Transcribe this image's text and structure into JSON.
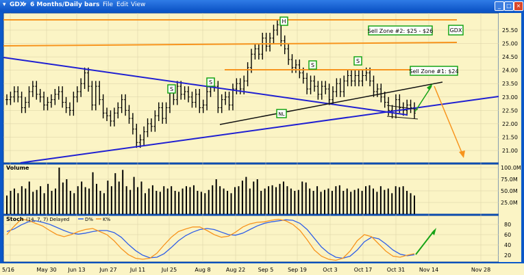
{
  "window": {
    "symbol": "GDX",
    "timeframe": "6 Months/Daily bars",
    "menu": [
      "File",
      "Edit",
      "View"
    ]
  },
  "colors": {
    "chart_bg": "#fbf4c5",
    "price_bars": "#000000",
    "blue_trendlines": "#1f1fd2",
    "orange_lines": "#f7941d",
    "black_lines": "#111111",
    "green_arrows": "#16a316",
    "stoch_d": "#2e5ee8",
    "stoch_k": "#f7941d"
  },
  "annotations": {
    "head": "H",
    "shoulder": "S",
    "neckline": "NL",
    "sell_zone_2": "Sell Zone #2: $25 - $26",
    "sell_zone_1": "Sell Zone #1: $24",
    "symbol_tag": "GDX"
  },
  "volume_label": "Volume",
  "stoch_label": {
    "name": "Stoch",
    "params": "(14, 7, 7) Delayed",
    "d": "D%",
    "k": "K%"
  },
  "chart_data": [
    {
      "type": "ohlc",
      "panel": "price",
      "ylim": [
        20.5,
        26.0
      ],
      "yticks": [
        "21.00",
        "21.50",
        "22.00",
        "22.50",
        "23.00",
        "23.50",
        "24.00",
        "24.50",
        "25.00",
        "25.50"
      ],
      "x_ticks": [
        "5/16",
        "May 30",
        "Jun 13",
        "Jun 27",
        "Jul 11",
        "Jul 25",
        "Aug 8",
        "Aug 22",
        "Sep 5",
        "Sep 19",
        "Oct 3",
        "Oct 17",
        "Oct 31",
        "Nov 14",
        "Nov 28"
      ],
      "close": [
        22.9,
        23.0,
        23.2,
        23.0,
        22.6,
        22.8,
        23.2,
        23.4,
        23.1,
        23.0,
        22.7,
        22.8,
        22.9,
        23.1,
        23.2,
        22.8,
        22.6,
        22.5,
        23.0,
        23.2,
        23.5,
        23.9,
        23.4,
        22.7,
        23.4,
        22.9,
        22.4,
        22.3,
        22.1,
        22.4,
        22.6,
        22.9,
        22.5,
        22.2,
        21.8,
        21.3,
        21.4,
        21.7,
        22.0,
        21.9,
        22.3,
        22.6,
        22.2,
        22.6,
        23.2,
        22.9,
        23.4,
        23.1,
        23.2,
        23.0,
        22.8,
        23.1,
        22.6,
        22.7,
        23.2,
        23.5,
        23.4,
        22.6,
        22.9,
        23.0,
        22.7,
        23.3,
        23.5,
        23.3,
        23.6,
        24.1,
        24.6,
        24.8,
        24.6,
        25.2,
        24.9,
        25.2,
        25.5,
        25.7,
        25.1,
        24.8,
        24.4,
        24.1,
        24.2,
        23.9,
        23.7,
        23.3,
        23.6,
        23.4,
        23.1,
        23.4,
        23.3,
        22.9,
        23.2,
        23.5,
        23.2,
        23.6,
        23.8,
        23.6,
        23.8,
        23.6,
        23.8,
        23.9,
        23.6,
        23.2,
        23.3,
        23.0,
        22.8,
        22.5,
        22.4,
        22.9,
        22.6,
        22.5,
        22.7,
        22.6,
        22.4
      ],
      "overlay_lines": [
        "Sell Zone #2 resistance",
        "Sell Zone #1 resistance",
        "neckline",
        "blue downtrend",
        "blue uptrend"
      ],
      "price_levels": {
        "sell_zone_2": [
          25.0,
          26.0
        ],
        "sell_zone_1": 24.0
      }
    },
    {
      "type": "bar",
      "panel": "volume",
      "yticks": [
        "25.0M",
        "50.0M",
        "75.0M",
        "100.0M"
      ],
      "ylim": [
        0,
        110
      ],
      "unit": "M",
      "values": [
        40,
        50,
        55,
        45,
        60,
        55,
        70,
        48,
        52,
        60,
        45,
        65,
        50,
        55,
        100,
        68,
        75,
        50,
        45,
        60,
        70,
        58,
        55,
        90,
        65,
        50,
        45,
        72,
        60,
        88,
        70,
        95,
        60,
        52,
        80,
        58,
        70,
        45,
        55,
        62,
        50,
        48,
        60,
        55,
        60,
        50,
        48,
        55,
        60,
        58,
        62,
        50,
        48,
        45,
        52,
        62,
        75,
        60,
        55,
        50,
        45,
        58,
        60,
        72,
        80,
        55,
        70,
        75,
        50,
        55,
        60,
        62,
        58,
        65,
        70,
        60,
        55,
        50,
        52,
        70,
        68,
        55,
        50,
        60,
        48,
        52,
        55,
        50,
        60,
        62,
        50,
        55,
        48,
        52,
        55,
        50,
        60,
        62,
        55,
        48,
        60,
        52,
        55,
        45,
        60,
        58,
        60,
        50,
        45,
        40
      ]
    },
    {
      "type": "line",
      "panel": "stochastic",
      "ylim": [
        10,
        95
      ],
      "yticks": [
        "20",
        "40",
        "60",
        "80"
      ],
      "series": [
        {
          "name": "D%",
          "values": [
            66,
            71,
            79,
            85,
            87,
            84,
            80,
            74,
            68,
            63,
            61,
            63,
            66,
            68,
            68,
            64,
            55,
            41,
            29,
            20,
            15,
            16,
            23,
            35,
            48,
            58,
            65,
            70,
            72,
            70,
            65,
            60,
            59,
            63,
            70,
            77,
            82,
            85,
            87,
            89,
            88,
            82,
            70,
            53,
            36,
            24,
            16,
            14,
            18,
            30,
            46,
            55,
            52,
            42,
            30,
            22,
            19,
            21
          ]
        },
        {
          "name": "K%",
          "values": [
            60,
            76,
            90,
            88,
            82,
            77,
            68,
            60,
            56,
            60,
            66,
            70,
            72,
            66,
            60,
            48,
            33,
            21,
            14,
            12,
            14,
            24,
            40,
            55,
            66,
            71,
            75,
            75,
            68,
            60,
            55,
            57,
            65,
            75,
            81,
            84,
            85,
            88,
            90,
            87,
            80,
            68,
            50,
            30,
            18,
            12,
            10,
            14,
            28,
            48,
            60,
            56,
            42,
            28,
            18,
            16,
            20,
            23
          ]
        }
      ]
    }
  ]
}
